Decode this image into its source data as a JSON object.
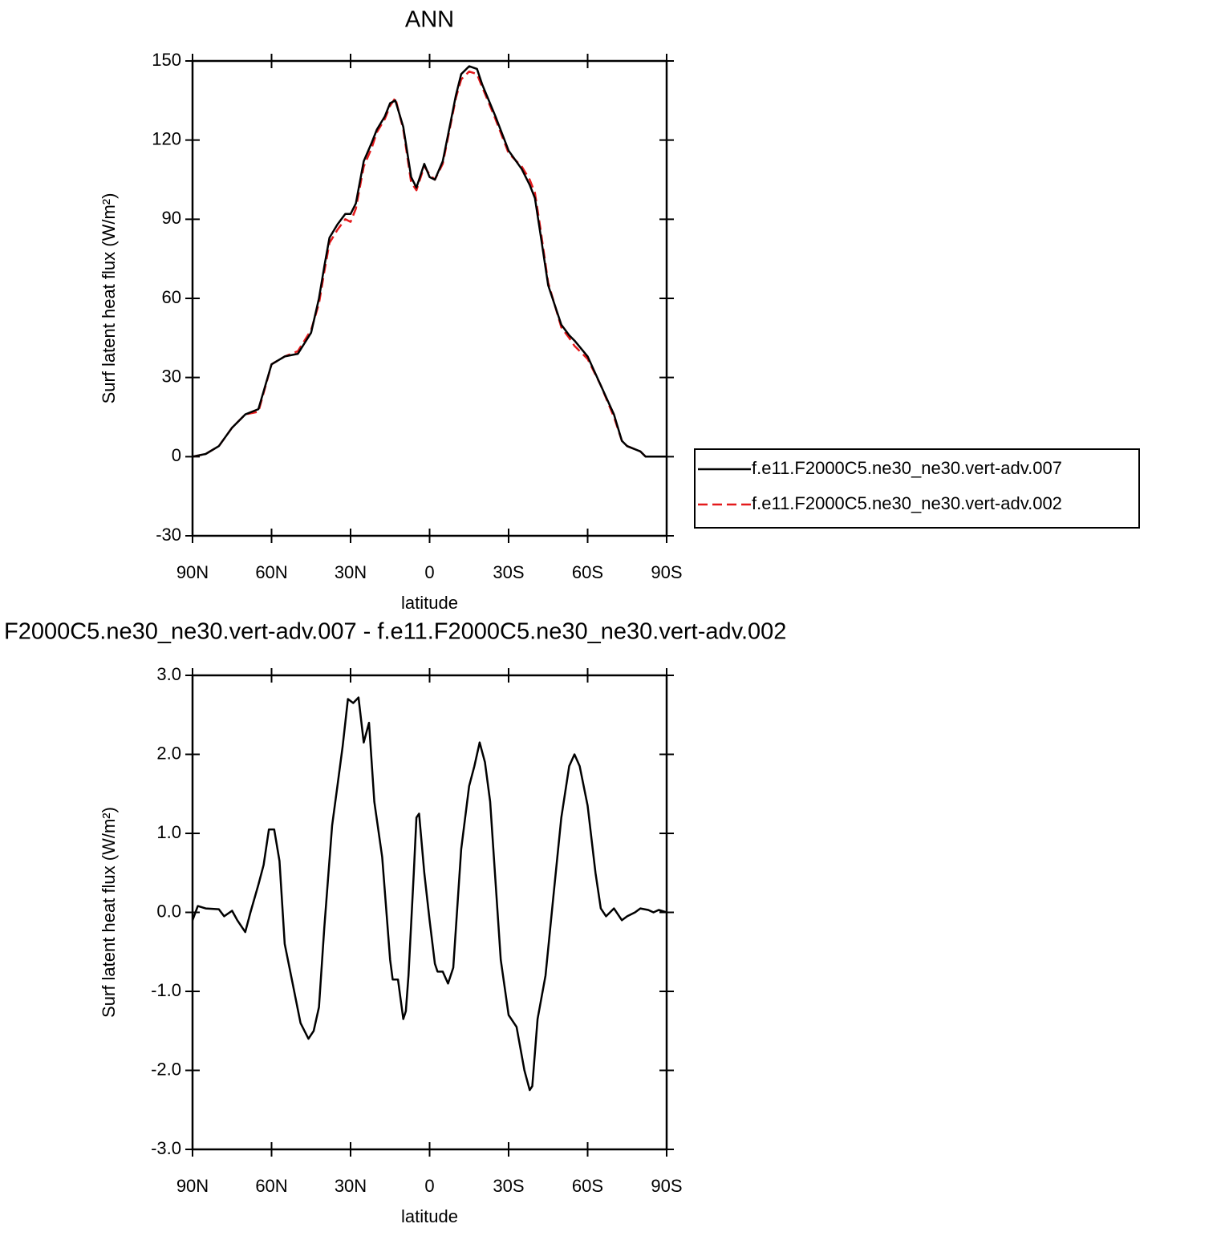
{
  "chart_data": [
    {
      "type": "line",
      "title": "ANN",
      "x_label": "latitude",
      "y_label": "Surf latent heat flux (W/m²)",
      "x": [
        90,
        85,
        80,
        75,
        70,
        65,
        60,
        55,
        50,
        45,
        42,
        40,
        38,
        35,
        32,
        30,
        28,
        25,
        22,
        20,
        17,
        15,
        13,
        10,
        7,
        5,
        3,
        2,
        0,
        -2,
        -5,
        -8,
        -10,
        -12,
        -15,
        -18,
        -20,
        -25,
        -30,
        -35,
        -38,
        -40,
        -42,
        -45,
        -50,
        -53,
        -55,
        -60,
        -65,
        -70,
        -73,
        -75,
        -80,
        -82,
        -85,
        -90
      ],
      "series": [
        {
          "name": "f.e11.F2000C5.ne30_ne30.vert-adv.002",
          "color": "#e41a1c",
          "line_style": "dashed",
          "values": [
            0,
            1,
            4,
            11,
            16,
            17,
            35,
            38,
            40,
            48,
            58,
            70,
            81,
            86,
            90,
            89,
            94,
            110,
            117,
            123,
            128,
            133,
            136,
            124,
            104,
            101,
            107,
            110,
            107,
            105,
            111,
            126,
            136,
            143,
            146,
            145,
            140,
            128,
            115,
            110,
            105,
            100,
            87,
            66,
            49,
            45,
            42,
            37,
            27,
            15,
            6,
            4,
            2,
            0,
            0,
            0
          ]
        },
        {
          "name": "f.e11.F2000C5.ne30_ne30.vert-adv.007",
          "color": "#000000",
          "line_style": "solid",
          "values": [
            0,
            1,
            4,
            11,
            16,
            18,
            35,
            38,
            39,
            47,
            60,
            72,
            83,
            88,
            92,
            92,
            96,
            112,
            119,
            124,
            129,
            134,
            135,
            125,
            106,
            102,
            108,
            111,
            106,
            105,
            112,
            127,
            137,
            145,
            148,
            147,
            141,
            129,
            116,
            109,
            103,
            98,
            85,
            65,
            50,
            46,
            44,
            38,
            27,
            16,
            6,
            4,
            2,
            0,
            0,
            0
          ]
        }
      ],
      "xlim": [
        90,
        -90
      ],
      "xticks": [
        {
          "value": 90,
          "label": "90N"
        },
        {
          "value": 60,
          "label": "60N"
        },
        {
          "value": 30,
          "label": "30N"
        },
        0,
        {
          "value": -30,
          "label": "30S"
        },
        {
          "value": -60,
          "label": "60S"
        },
        {
          "value": -90,
          "label": "90S"
        }
      ],
      "ylim": [
        -30,
        150
      ],
      "yticks": [
        -30,
        0,
        30,
        60,
        90,
        120,
        150
      ],
      "legend": "right"
    },
    {
      "type": "line",
      "title": "F2000C5.ne30_ne30.vert-adv.007 - f.e11.F2000C5.ne30_ne30.vert-adv.002",
      "x_label": "latitude",
      "y_label": "Surf latent heat flux (W/m²)",
      "x": [
        90,
        88,
        85,
        80,
        78,
        75,
        73,
        70,
        68,
        65,
        63,
        61,
        59,
        57,
        55,
        52,
        49,
        46,
        44,
        42,
        40,
        37,
        35,
        33,
        31,
        29,
        27,
        25,
        23,
        21,
        18,
        15,
        14,
        12,
        10,
        9,
        8,
        6,
        5,
        4,
        2,
        0,
        -2,
        -3,
        -5,
        -7,
        -9,
        -12,
        -15,
        -17,
        -19,
        -21,
        -23,
        -25,
        -27,
        -30,
        -33,
        -36,
        -38,
        -39,
        -41,
        -44,
        -47,
        -50,
        -53,
        -55,
        -57,
        -60,
        -63,
        -65,
        -67,
        -70,
        -73,
        -75,
        -78,
        -80,
        -83,
        -85,
        -87,
        -90
      ],
      "values": [
        -0.1,
        0.08,
        0.05,
        0.04,
        -0.05,
        0.02,
        -0.1,
        -0.25,
        0,
        0.35,
        0.6,
        1.05,
        1.05,
        0.65,
        -0.4,
        -0.9,
        -1.4,
        -1.6,
        -1.5,
        -1.2,
        -0.2,
        1.1,
        1.6,
        2.1,
        2.7,
        2.65,
        2.72,
        2.15,
        2.4,
        1.4,
        0.7,
        -0.6,
        -0.85,
        -0.85,
        -1.35,
        -1.25,
        -0.8,
        0.5,
        1.2,
        1.25,
        0.5,
        -0.1,
        -0.65,
        -0.75,
        -0.75,
        -0.9,
        -0.7,
        0.8,
        1.6,
        1.85,
        2.15,
        1.9,
        1.4,
        0.4,
        -0.6,
        -1.3,
        -1.45,
        -2.0,
        -2.25,
        -2.2,
        -1.35,
        -0.8,
        0.2,
        1.2,
        1.85,
        2.0,
        1.85,
        1.35,
        0.5,
        0.05,
        -0.05,
        0.05,
        -0.1,
        -0.05,
        0,
        0.05,
        0.03,
        0,
        0.03,
        0
      ],
      "color": "#000000",
      "xlim": [
        90,
        -90
      ],
      "xticks": [
        {
          "value": 90,
          "label": "90N"
        },
        {
          "value": 60,
          "label": "60N"
        },
        {
          "value": 30,
          "label": "30N"
        },
        0,
        {
          "value": -30,
          "label": "30S"
        },
        {
          "value": -60,
          "label": "60S"
        },
        {
          "value": -90,
          "label": "90S"
        }
      ],
      "ylim": [
        -3,
        3
      ],
      "yticks": [
        {
          "value": -3,
          "label": "-3.0"
        },
        {
          "value": -2,
          "label": "-2.0"
        },
        {
          "value": -1,
          "label": "-1.0"
        },
        {
          "value": 0,
          "label": "0.0"
        },
        {
          "value": 1,
          "label": "1.0"
        },
        {
          "value": 2,
          "label": "2.0"
        },
        {
          "value": 3,
          "label": "3.0"
        }
      ]
    }
  ]
}
